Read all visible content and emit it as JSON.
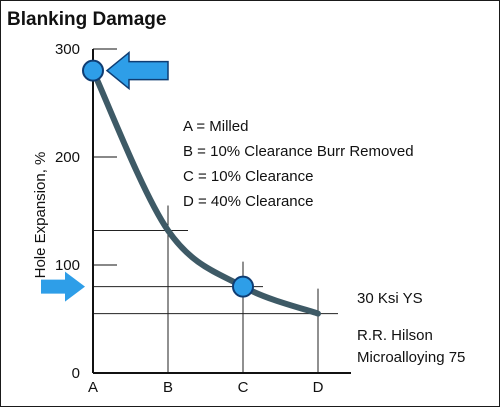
{
  "chart_data": {
    "type": "line",
    "title": "Blanking Damage",
    "xlabel": "",
    "ylabel": "Hole Expansion, %",
    "categories": [
      "A",
      "B",
      "C",
      "D"
    ],
    "ylim": [
      0,
      300
    ],
    "y_ticks": [
      0,
      100,
      200,
      300
    ],
    "grid": false,
    "series": [
      {
        "x": [
          "A",
          "B",
          "C",
          "D"
        ],
        "values": [
          280,
          132,
          80,
          55
        ]
      }
    ],
    "highlighted_points": [
      {
        "x": "A",
        "y": 280
      },
      {
        "x": "C",
        "y": 80
      }
    ],
    "reference_lines": [
      {
        "x": "B",
        "y": 132
      },
      {
        "x": "C",
        "y": 80
      },
      {
        "x": "D",
        "y": 55
      }
    ],
    "arrow_markers": [
      {
        "y": 280
      },
      {
        "y": 80
      }
    ],
    "legend": {
      "placement": "top-right",
      "entries": [
        "A = Milled",
        "B = 10% Clearance Burr Removed",
        "C = 10% Clearance",
        "D = 40% Clearance"
      ]
    },
    "annotations": {
      "yield_strength": "30 Ksi YS",
      "source_line1": "R.R. Hilson",
      "source_line2": "Microalloying 75"
    },
    "colors": {
      "curve": "#3e5a66",
      "marker_fill": "#2e9ee8",
      "marker_stroke": "#0f3d73",
      "arrow": "#2e9ee8",
      "axis": "#111111"
    }
  }
}
